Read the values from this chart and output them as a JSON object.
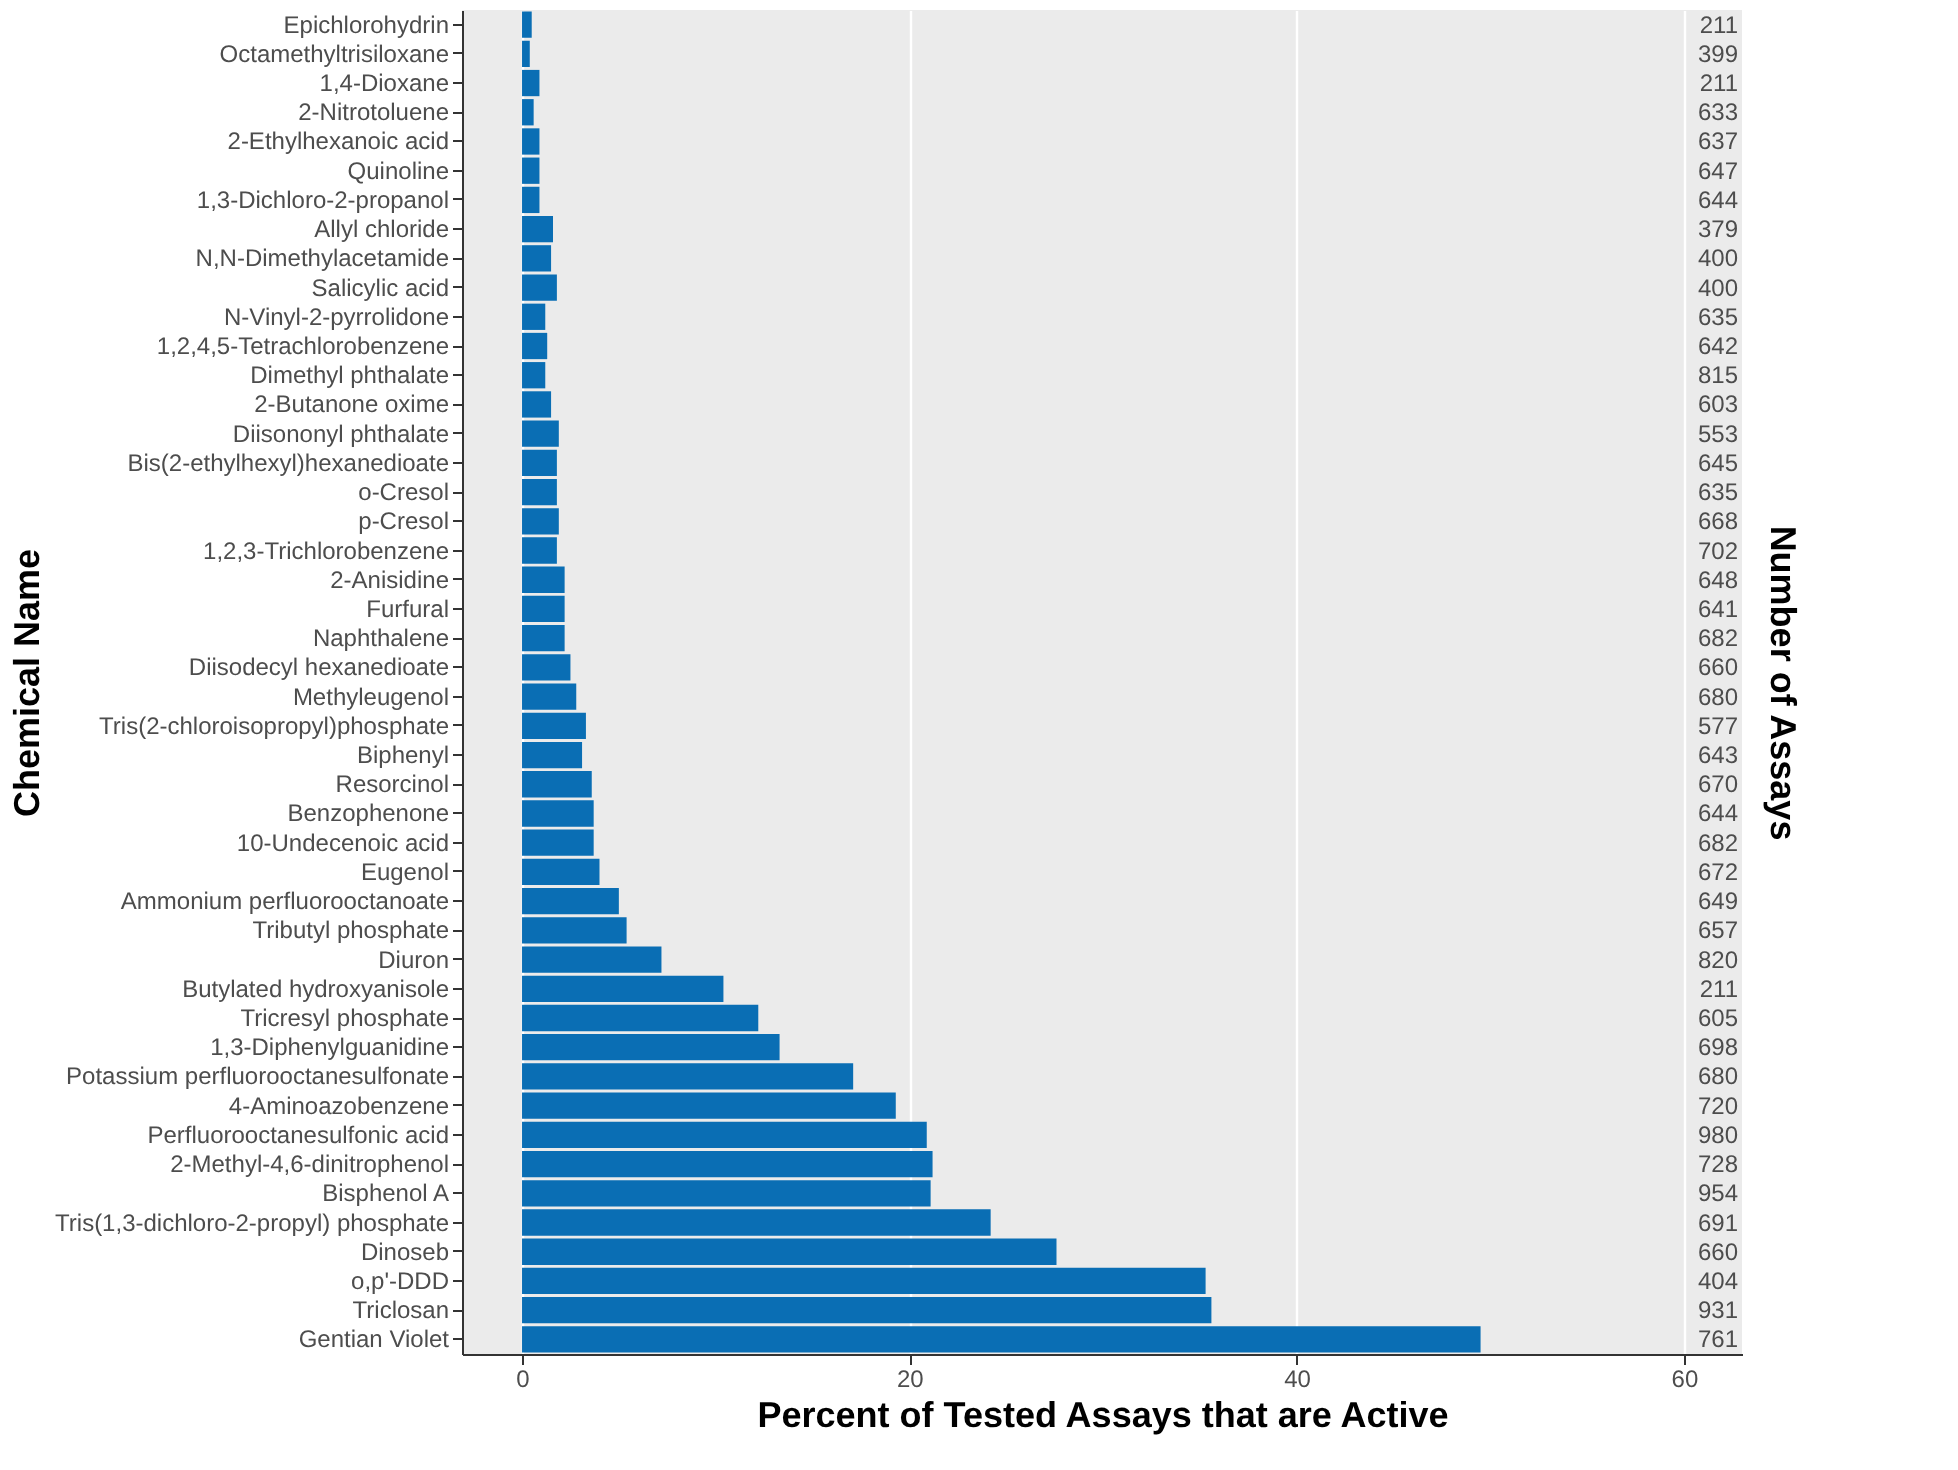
{
  "chart_data": {
    "type": "bar",
    "orientation": "horizontal",
    "xlabel": "Percent of Tested Assays that are Active",
    "ylabel": "Chemical Name",
    "y2label": "Number of Assays",
    "categories": [
      "Epichlorohydrin",
      "Octamethyltrisiloxane",
      "1,4-Dioxane",
      "2-Nitrotoluene",
      "2-Ethylhexanoic acid",
      "Quinoline",
      "1,3-Dichloro-2-propanol",
      "Allyl chloride",
      "N,N-Dimethylacetamide",
      "Salicylic acid",
      "N-Vinyl-2-pyrrolidone",
      "1,2,4,5-Tetrachlorobenzene",
      "Dimethyl phthalate",
      "2-Butanone oxime",
      "Diisononyl phthalate",
      "Bis(2-ethylhexyl)hexanedioate",
      "o-Cresol",
      "p-Cresol",
      "1,2,3-Trichlorobenzene",
      "2-Anisidine",
      "Furfural",
      "Naphthalene",
      "Diisodecyl hexanedioate",
      "Methyleugenol",
      "Tris(2-chloroisopropyl)phosphate",
      "Biphenyl",
      "Resorcinol",
      "Benzophenone",
      "10-Undecenoic acid",
      "Eugenol",
      "Ammonium perfluorooctanoate",
      "Tributyl phosphate",
      "Diuron",
      "Butylated hydroxyanisole",
      "Tricresyl phosphate",
      "1,3-Diphenylguanidine",
      "Potassium perfluorooctanesulfonate",
      "4-Aminoazobenzene",
      "Perfluorooctanesulfonic acid",
      "2-Methyl-4,6-dinitrophenol",
      "Bisphenol A",
      "Tris(1,3-dichloro-2-propyl) phosphate",
      "Dinoseb",
      "o,p'-DDD",
      "Triclosan",
      "Gentian Violet"
    ],
    "y2_categories": [
      "211",
      "399",
      "211",
      "633",
      "637",
      "647",
      "644",
      "379",
      "400",
      "400",
      "635",
      "642",
      "815",
      "603",
      "553",
      "645",
      "635",
      "668",
      "702",
      "648",
      "641",
      "682",
      "660",
      "680",
      "577",
      "643",
      "670",
      "644",
      "682",
      "672",
      "649",
      "657",
      "820",
      "211",
      "605",
      "698",
      "680",
      "720",
      "980",
      "728",
      "954",
      "691",
      "660",
      "404",
      "931",
      "761"
    ],
    "values": [
      0.5,
      0.4,
      0.9,
      0.6,
      0.9,
      0.9,
      0.9,
      1.6,
      1.5,
      1.8,
      1.2,
      1.3,
      1.2,
      1.5,
      1.9,
      1.8,
      1.8,
      1.9,
      1.8,
      2.2,
      2.2,
      2.2,
      2.5,
      2.8,
      3.3,
      3.1,
      3.6,
      3.7,
      3.7,
      4.0,
      5.0,
      5.4,
      7.2,
      10.4,
      12.2,
      13.3,
      17.1,
      19.3,
      20.9,
      21.2,
      21.1,
      24.2,
      27.6,
      35.3,
      35.6,
      49.5
    ],
    "color": "#0a6eb4",
    "xlim": [
      -3.1,
      63
    ],
    "xticks": [
      0,
      20,
      40,
      60
    ],
    "grid": "x"
  }
}
